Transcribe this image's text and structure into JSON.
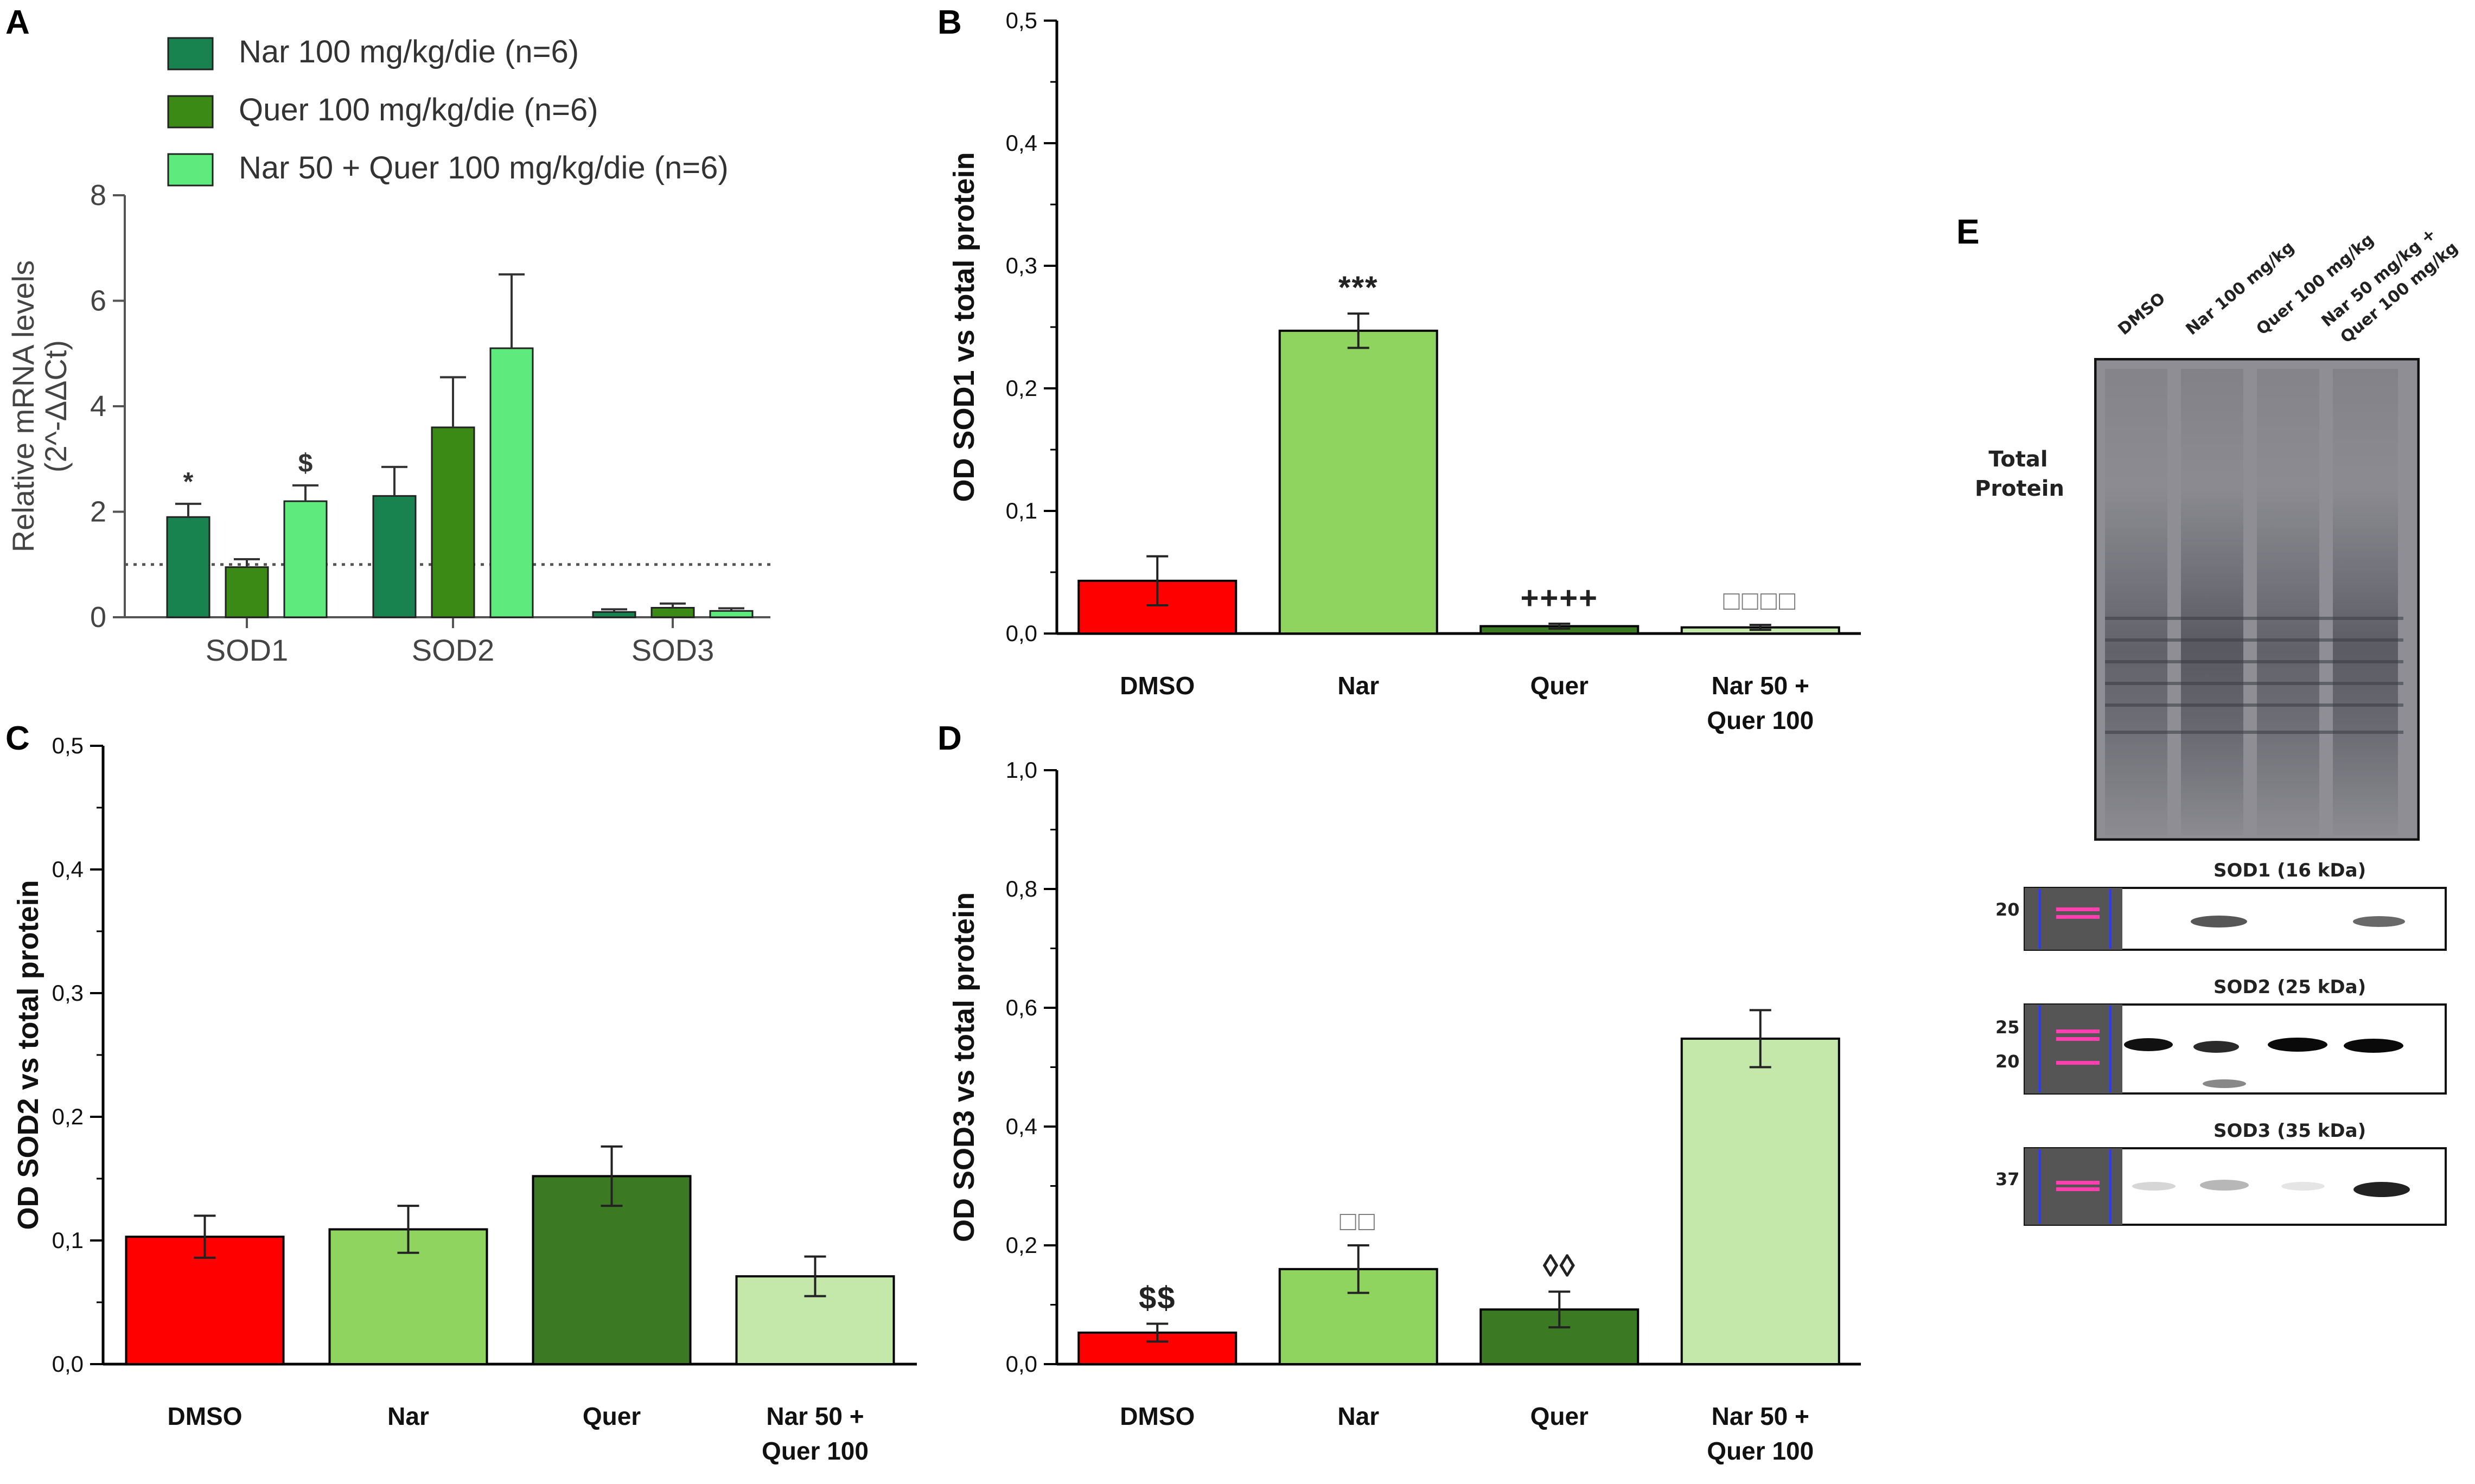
{
  "chart_data": [
    {
      "panel_letter": "A",
      "type": "bar",
      "ylabel": "Relative mRNA levels",
      "ylabel2": "(2^-ΔΔCt)",
      "ylim": [
        0,
        8
      ],
      "yticks": [
        "0",
        "2",
        "4",
        "6",
        "8"
      ],
      "reference_line": 1,
      "categories": [
        "SOD1",
        "SOD2",
        "SOD3"
      ],
      "series": [
        {
          "name": "Nar 100 mg/kg/die (n=6)",
          "color": "#18834f",
          "values": [
            1.9,
            2.3,
            0.1
          ],
          "errors": [
            0.25,
            0.55,
            0.05
          ],
          "annotations": [
            "*",
            "",
            ""
          ]
        },
        {
          "name": "Quer 100 mg/kg/die (n=6)",
          "color": "#3b8a15",
          "values": [
            0.95,
            3.6,
            0.18
          ],
          "errors": [
            0.15,
            0.95,
            0.08
          ],
          "annotations": [
            "",
            "",
            ""
          ]
        },
        {
          "name": "Nar 50 + Quer 100 mg/kg/die (n=6)",
          "color": "#5eea7c",
          "values": [
            2.2,
            5.1,
            0.12
          ],
          "errors": [
            0.3,
            1.4,
            0.05
          ],
          "annotations": [
            "$",
            "",
            ""
          ]
        }
      ]
    },
    {
      "panel_letter": "B",
      "type": "bar",
      "ylabel": "OD SOD1 vs total protein",
      "ylim": [
        0,
        0.5
      ],
      "yticks": [
        "0,0",
        "0,1",
        "0,2",
        "0,3",
        "0,4",
        "0,5"
      ],
      "categories": [
        "DMSO",
        "Nar",
        "Quer",
        "Nar 50 +|Quer 100"
      ],
      "values": [
        0.043,
        0.247,
        0.006,
        0.005
      ],
      "errors": [
        0.02,
        0.014,
        0.002,
        0.002
      ],
      "colors": [
        "#ff0000",
        "#8ed45f",
        "#3b7a23",
        "#c3e8a9"
      ],
      "annotations": [
        "",
        "***",
        "++++",
        "□□□□"
      ]
    },
    {
      "panel_letter": "C",
      "type": "bar",
      "ylabel": "OD SOD2 vs total protein",
      "ylim": [
        0,
        0.5
      ],
      "yticks": [
        "0,0",
        "0,1",
        "0,2",
        "0,3",
        "0,4",
        "0,5"
      ],
      "categories": [
        "DMSO",
        "Nar",
        "Quer",
        "Nar 50 +|Quer 100"
      ],
      "values": [
        0.103,
        0.109,
        0.152,
        0.071
      ],
      "errors": [
        0.017,
        0.019,
        0.024,
        0.016
      ],
      "colors": [
        "#ff0000",
        "#8ed45f",
        "#3b7a23",
        "#c3e8a9"
      ],
      "annotations": [
        "",
        "",
        "",
        ""
      ]
    },
    {
      "panel_letter": "D",
      "type": "bar",
      "ylabel": "OD SOD3 vs total protein",
      "ylim": [
        0,
        1
      ],
      "yticks": [
        "0,0",
        "0,2",
        "0,4",
        "0,6",
        "0,8",
        "1,0"
      ],
      "categories": [
        "DMSO",
        "Nar",
        "Quer",
        "Nar 50 +|Quer 100"
      ],
      "values": [
        0.053,
        0.16,
        0.092,
        0.548
      ],
      "errors": [
        0.015,
        0.04,
        0.03,
        0.048
      ],
      "colors": [
        "#ff0000",
        "#8ed45f",
        "#3b7a23",
        "#c3e8a9"
      ],
      "annotations": [
        "$$",
        "□□",
        "◊◊",
        ""
      ]
    }
  ],
  "blot": {
    "panel_letter": "E",
    "lanes": [
      "DMSO",
      "Nar 100 mg/kg",
      "Quer 100 mg/kg",
      "Nar 50 mg/kg +",
      "Quer 100 mg/kg"
    ],
    "total_protein_label_1": "Total",
    "total_protein_label_2": "Protein",
    "sod1_label": "SOD1 (16 kDa)",
    "sod2_label": "SOD2 (25 kDa)",
    "sod3_label": "SOD3 (35 kDa)",
    "sod1_marker": "20",
    "sod2_marker_1": "25",
    "sod2_marker_2": "20",
    "sod3_marker": "37"
  }
}
